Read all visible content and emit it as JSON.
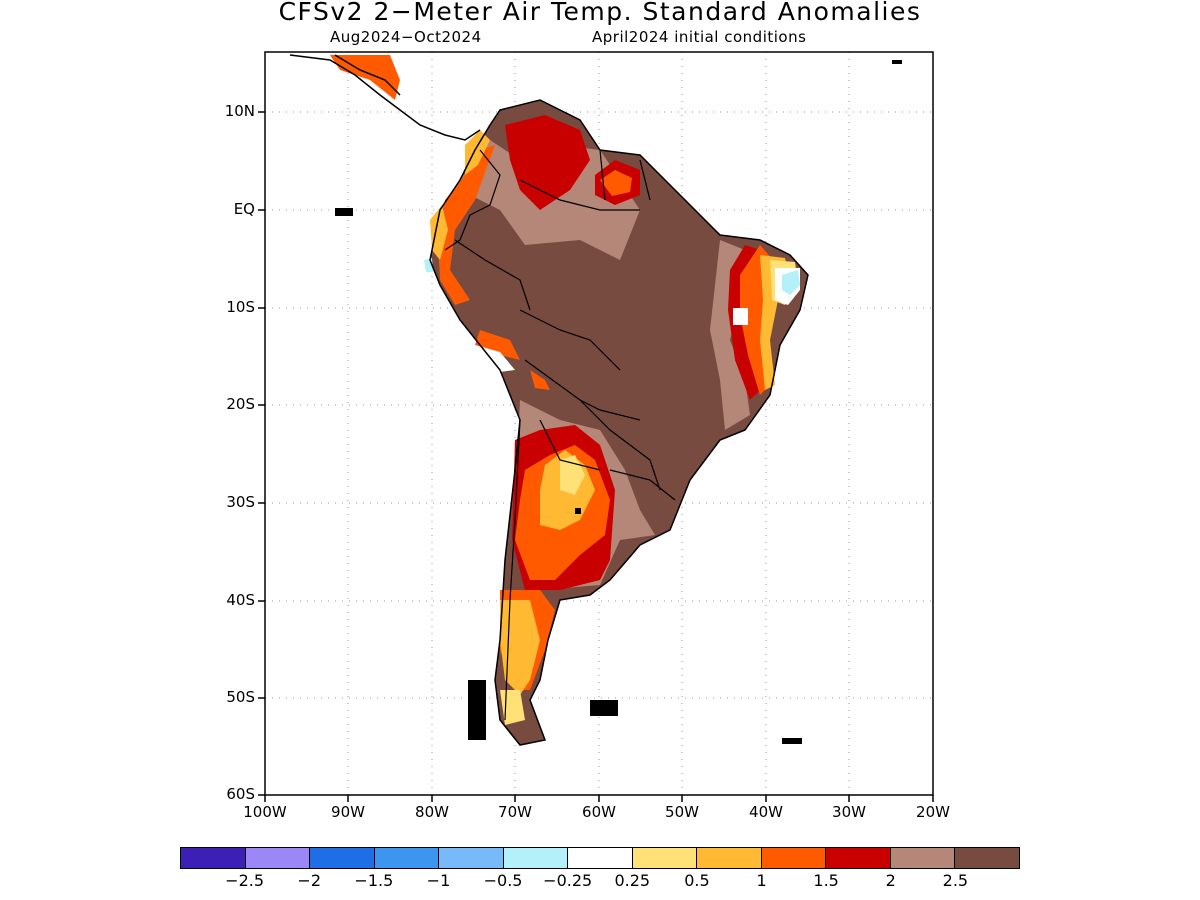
{
  "title": "CFSv2 2−Meter Air Temp. Standard Anomalies",
  "subtitle_left": "Aug2024−Oct2024",
  "subtitle_right": "April2024 initial conditions",
  "lat_labels": [
    "10N",
    "EQ",
    "10S",
    "20S",
    "30S",
    "40S",
    "50S",
    "60S"
  ],
  "lon_labels": [
    "100W",
    "90W",
    "80W",
    "70W",
    "60W",
    "50W",
    "40W",
    "30W",
    "20W"
  ],
  "colorbar": {
    "colors": [
      "#3c1fb4",
      "#9b87f5",
      "#1e6ee6",
      "#3c96f0",
      "#78b9fa",
      "#b4f0fa",
      "#ffffff",
      "#ffe178",
      "#ffb932",
      "#ff5a00",
      "#c80000",
      "#b48778",
      "#784b41"
    ],
    "labels": [
      "−2.5",
      "−2",
      "−1.5",
      "−1",
      "−0.5",
      "−0.25",
      "0.25",
      "0.5",
      "1",
      "1.5",
      "2",
      "2.5"
    ]
  },
  "anomaly_colors": {
    "c05": "#ffe178",
    "c1": "#ffb932",
    "c15": "#ff5a00",
    "c2": "#c80000",
    "c25": "#b48778",
    "c3": "#784b41",
    "cneg": "#b4f0fa"
  }
}
